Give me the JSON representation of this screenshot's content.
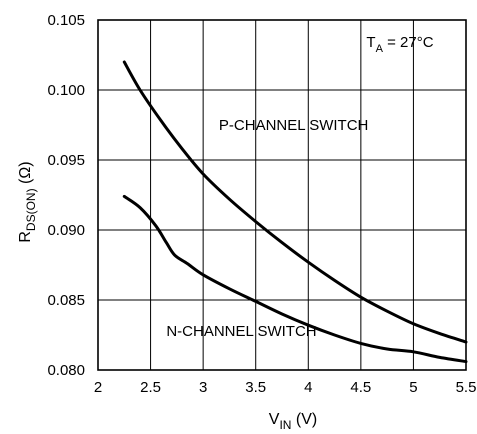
{
  "chart_data": {
    "type": "line",
    "title": "",
    "annotation": {
      "text": "T",
      "subscript": "A",
      "suffix": " = 27°C"
    },
    "xlabel": {
      "main": "V",
      "subscript": "IN",
      "suffix": " (V)"
    },
    "ylabel": {
      "main": "R",
      "subscript": "DS(ON)",
      "suffix": " (Ω)"
    },
    "xlim": [
      2,
      5.5
    ],
    "ylim": [
      0.08,
      0.105
    ],
    "xticks": [
      2,
      2.5,
      3,
      3.5,
      4,
      4.5,
      5,
      5.5
    ],
    "xtick_labels": [
      "2",
      "2.5",
      "3",
      "3.5",
      "4",
      "4.5",
      "5",
      "5.5"
    ],
    "yticks": [
      0.08,
      0.085,
      0.09,
      0.095,
      0.1,
      0.105
    ],
    "ytick_labels": [
      "0.080",
      "0.085",
      "0.090",
      "0.095",
      "0.100",
      "0.105"
    ],
    "grid": true,
    "series": [
      {
        "name": "P-CHANNEL SWITCH",
        "x": [
          2.25,
          2.4,
          2.6,
          2.8,
          3.0,
          3.25,
          3.5,
          3.75,
          4.0,
          4.25,
          4.5,
          4.75,
          5.0,
          5.25,
          5.5
        ],
        "y": [
          0.102,
          0.1,
          0.0978,
          0.0958,
          0.094,
          0.0922,
          0.0906,
          0.0891,
          0.0877,
          0.0864,
          0.0852,
          0.0842,
          0.0833,
          0.0826,
          0.082
        ],
        "label_pos": [
          3.15,
          0.0975
        ]
      },
      {
        "name": "N-CHANNEL SWITCH",
        "x": [
          2.25,
          2.4,
          2.55,
          2.65,
          2.73,
          2.85,
          3.0,
          3.25,
          3.5,
          3.75,
          4.0,
          4.25,
          4.5,
          4.75,
          5.0,
          5.25,
          5.5
        ],
        "y": [
          0.0924,
          0.0916,
          0.0903,
          0.0891,
          0.0882,
          0.0876,
          0.0868,
          0.0858,
          0.0849,
          0.084,
          0.0832,
          0.0825,
          0.0819,
          0.0815,
          0.0813,
          0.0809,
          0.0806
        ],
        "label_pos": [
          2.65,
          0.0828
        ]
      }
    ]
  }
}
